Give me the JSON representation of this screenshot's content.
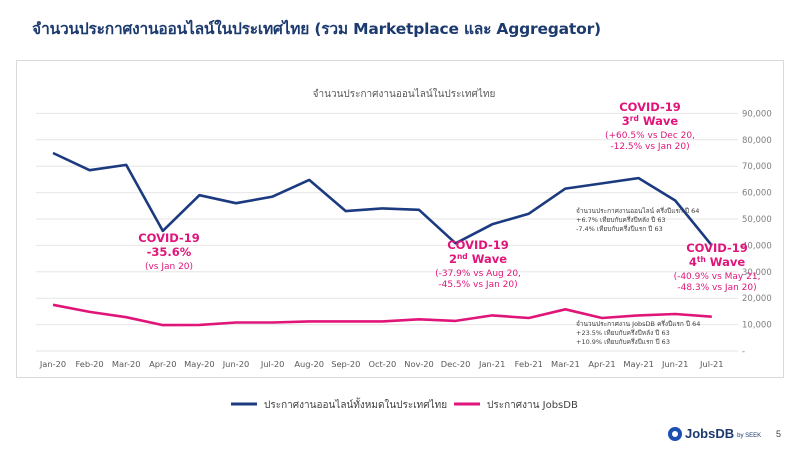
{
  "slide": {
    "title": "จำนวนประกาศงานออนไลน์ในประเทศไทย (รวม Marketplace และ Aggregator)",
    "page_number": "5",
    "logo": {
      "brand": "JobsDB",
      "sub": "by SEEK",
      "color": "#1c4fb2"
    }
  },
  "chart_data": {
    "type": "line",
    "title": "จำนวนประกาศงานออนไลน์ในประเทศไทย",
    "categories": [
      "Jan-20",
      "Feb-20",
      "Mar-20",
      "Apr-20",
      "May-20",
      "Jun-20",
      "Jul-20",
      "Aug-20",
      "Sep-20",
      "Oct-20",
      "Nov-20",
      "Dec-20",
      "Jan-21",
      "Feb-21",
      "Mar-21",
      "Apr-21",
      "May-21",
      "Jun-21",
      "Jul-21"
    ],
    "y_ticks": [
      "-",
      "10,000",
      "20,000",
      "30,000",
      "40,000",
      "50,000",
      "60,000",
      "70,000",
      "80,000",
      "90,000"
    ],
    "ylim": [
      0,
      90000
    ],
    "grid": true,
    "series": [
      {
        "name": "ประกาศงานออนไลน์ทั้งหมดในประเทศไทย",
        "color": "#1c3a80",
        "values": [
          75000,
          68500,
          70500,
          45500,
          59000,
          56000,
          58500,
          64800,
          53000,
          54000,
          53500,
          40800,
          48000,
          52000,
          61500,
          63500,
          65500,
          57000,
          40000
        ]
      },
      {
        "name": "ประกาศงาน JobsDB",
        "color": "#e0157a",
        "values": [
          17500,
          14800,
          12800,
          9800,
          9900,
          10800,
          10800,
          11200,
          11200,
          11200,
          12000,
          11400,
          13500,
          12500,
          15800,
          12500,
          13500,
          14000,
          13000
        ]
      }
    ],
    "annotations": [
      {
        "lines": [
          "COVID-19",
          "-35.6%"
        ],
        "note": "(vs Jan 20)"
      },
      {
        "lines": [
          "COVID-19",
          "2",
          "nd",
          " Wave"
        ],
        "note1": "(-37.9% vs Aug 20,",
        "note2": "-45.5% vs Jan 20)"
      },
      {
        "lines": [
          "COVID-19",
          "3",
          "rd",
          " Wave"
        ],
        "note1": "(+60.5% vs Dec 20,",
        "note2": "-12.5% vs Jan 20)"
      },
      {
        "lines": [
          "COVID-19",
          "4",
          "th",
          " Wave"
        ],
        "note1": "(-40.9% vs May 21,",
        "note2": "-48.3% vs Jan 20)"
      }
    ],
    "summaries": [
      [
        "จำนวนประกาศงานออนไลน์ ครึ่งปีแรก ปี 64",
        "+6.7% เทียบกับครึ่งปีหลัง ปี 63",
        "-7.4% เทียบกับครึ่งปีแรก ปี 63"
      ],
      [
        "จำนวนประกาศงาน JobsDB ครึ่งปีแรก ปี 64",
        "+23.5% เทียบกับครึ่งปีหลัง ปี 63",
        "+10.9% เทียบกับครึ่งปีแรก ปี 63"
      ]
    ],
    "annotation_color": "#e0157a"
  }
}
